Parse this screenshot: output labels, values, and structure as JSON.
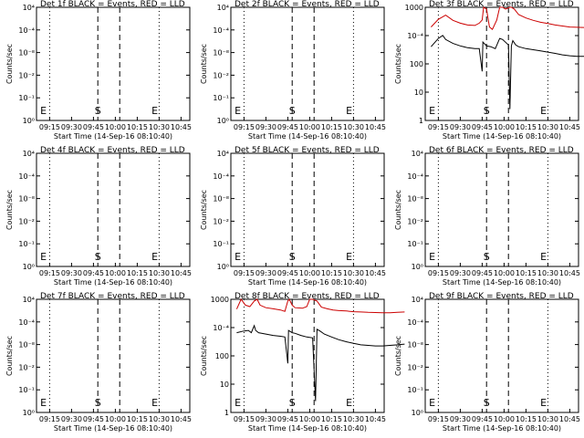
{
  "chart_data": [
    {
      "type": "line",
      "title": "Det 1f BLACK = Events, RED = LLD",
      "ylabel": "Counts/sec",
      "xlabel": "Start Time (14-Sep-16 08:10:40)",
      "yscale": "log",
      "ylim": [
        1,
        100000
      ],
      "ytick_labels": [
        "10⁴",
        "10⁻⁴",
        "10⁻⁸",
        "10⁻²",
        "10⁻¹",
        "10⁰"
      ],
      "xtick_labels": [
        "09:15",
        "09:30",
        "09:45",
        "10:00",
        "10:15",
        "10:30",
        "10:45"
      ],
      "markers": [
        {
          "label": "E",
          "time": "09:12"
        },
        {
          "label": "S",
          "time": "09:48"
        },
        {
          "label": "E",
          "time": "10:27"
        }
      ],
      "series": []
    },
    {
      "type": "line",
      "title": "Det 2f BLACK = Events, RED = LLD",
      "ylabel": "Counts/sec",
      "xlabel": "Start Time (14-Sep-16 08:10:40)",
      "yscale": "log",
      "ylim": [
        1,
        100000
      ],
      "ytick_labels": [
        "10⁴",
        "10⁻⁴",
        "10⁻⁸",
        "10⁻²",
        "10⁻¹",
        "10⁰"
      ],
      "xtick_labels": [
        "09:15",
        "09:30",
        "09:45",
        "10:00",
        "10:15",
        "10:30",
        "10:45"
      ],
      "markers": [
        {
          "label": "E",
          "time": "09:12"
        },
        {
          "label": "S",
          "time": "09:48"
        },
        {
          "label": "E",
          "time": "10:27"
        }
      ],
      "series": []
    },
    {
      "type": "line",
      "title": "Det 3f BLACK = Events, RED = LLD",
      "ylabel": "Counts/sec",
      "xlabel": "Start Time (14-Sep-16 08:10:40)",
      "yscale": "log",
      "ylim": [
        1,
        1000
      ],
      "ytick_labels": [
        "1000",
        "10⁻⁴",
        "100",
        "10",
        "1"
      ],
      "xtick_labels": [
        "09:15",
        "09:30",
        "09:45",
        "10:00",
        "10:15",
        "10:30",
        "10:45"
      ],
      "markers": [
        {
          "label": "E",
          "time": "09:12"
        },
        {
          "label": "S",
          "time": "09:48"
        },
        {
          "label": "E",
          "time": "10:27"
        }
      ],
      "series": [
        {
          "color": "#cc0000",
          "points": [
            [
              0,
              300
            ],
            [
              5,
              480
            ],
            [
              10,
              620
            ],
            [
              15,
              450
            ],
            [
              20,
              380
            ],
            [
              25,
              340
            ],
            [
              30,
              330
            ],
            [
              33,
              380
            ],
            [
              35,
              460
            ],
            [
              36,
              1000
            ],
            [
              38,
              900
            ],
            [
              40,
              300
            ],
            [
              42,
              260
            ],
            [
              45,
              460
            ],
            [
              47,
              1000
            ],
            [
              49,
              1000
            ],
            [
              51,
              900
            ],
            [
              54,
              1000
            ],
            [
              55,
              1000
            ],
            [
              57,
              900
            ],
            [
              60,
              640
            ],
            [
              65,
              520
            ],
            [
              70,
              450
            ],
            [
              75,
              400
            ],
            [
              80,
              370
            ],
            [
              85,
              340
            ],
            [
              90,
              320
            ],
            [
              95,
              300
            ],
            [
              100,
              295
            ],
            [
              105,
              290
            ],
            [
              110,
              300
            ],
            [
              115,
              310
            ]
          ]
        },
        {
          "color": "#000000",
          "points": [
            [
              0,
              90
            ],
            [
              5,
              150
            ],
            [
              8,
              180
            ],
            [
              10,
              140
            ],
            [
              15,
              110
            ],
            [
              20,
              95
            ],
            [
              25,
              85
            ],
            [
              30,
              80
            ],
            [
              33,
              80
            ],
            [
              35,
              20
            ],
            [
              35.5,
              120
            ],
            [
              38,
              95
            ],
            [
              41,
              90
            ],
            [
              44,
              80
            ],
            [
              47,
              150
            ],
            [
              49,
              140
            ],
            [
              53,
              100
            ],
            [
              54,
              2
            ],
            [
              55,
              95
            ],
            [
              56,
              130
            ],
            [
              58,
              100
            ],
            [
              60,
              90
            ],
            [
              65,
              80
            ],
            [
              70,
              75
            ],
            [
              75,
              70
            ],
            [
              80,
              65
            ],
            [
              85,
              60
            ],
            [
              90,
              55
            ],
            [
              95,
              52
            ],
            [
              100,
              50
            ],
            [
              105,
              50
            ],
            [
              110,
              55
            ],
            [
              115,
              60
            ]
          ]
        }
      ]
    },
    {
      "type": "line",
      "title": "Det 4f BLACK = Events, RED = LLD",
      "ylabel": "Counts/sec",
      "xlabel": "Start Time (14-Sep-16 08:10:40)",
      "yscale": "log",
      "ylim": [
        1,
        100000
      ],
      "ytick_labels": [
        "10⁴",
        "10⁻⁴",
        "10⁻⁸",
        "10⁻²",
        "10⁻¹",
        "10⁰"
      ],
      "xtick_labels": [
        "09:15",
        "09:30",
        "09:45",
        "10:00",
        "10:15",
        "10:30",
        "10:45"
      ],
      "markers": [
        {
          "label": "E",
          "time": "09:12"
        },
        {
          "label": "S",
          "time": "09:48"
        },
        {
          "label": "E",
          "time": "10:27"
        }
      ],
      "series": []
    },
    {
      "type": "line",
      "title": "Det 5f BLACK = Events, RED = LLD",
      "ylabel": "Counts/sec",
      "xlabel": "Start Time (14-Sep-16 08:10:40)",
      "yscale": "log",
      "ylim": [
        1,
        100000
      ],
      "ytick_labels": [
        "10⁴",
        "10⁻⁴",
        "10⁻⁸",
        "10⁻²",
        "10⁻¹",
        "10⁰"
      ],
      "xtick_labels": [
        "09:15",
        "09:30",
        "09:45",
        "10:00",
        "10:15",
        "10:30",
        "10:45"
      ],
      "markers": [
        {
          "label": "E",
          "time": "09:12"
        },
        {
          "label": "S",
          "time": "09:48"
        },
        {
          "label": "E",
          "time": "10:27"
        }
      ],
      "series": []
    },
    {
      "type": "line",
      "title": "Det 6f BLACK = Events, RED = LLD",
      "ylabel": "Counts/sec",
      "xlabel": "Start Time (14-Sep-16 08:10:40)",
      "yscale": "log",
      "ylim": [
        1,
        100000
      ],
      "ytick_labels": [
        "10⁴",
        "10⁻⁴",
        "10⁻⁸",
        "10⁻²",
        "10⁻¹",
        "10⁰"
      ],
      "xtick_labels": [
        "09:15",
        "09:30",
        "09:45",
        "10:00",
        "10:15",
        "10:30",
        "10:45"
      ],
      "markers": [
        {
          "label": "E",
          "time": "09:12"
        },
        {
          "label": "S",
          "time": "09:48"
        },
        {
          "label": "E",
          "time": "10:27"
        }
      ],
      "series": []
    },
    {
      "type": "line",
      "title": "Det 7f BLACK = Events, RED = LLD",
      "ylabel": "Counts/sec",
      "xlabel": "Start Time (14-Sep-16 08:10:40)",
      "yscale": "log",
      "ylim": [
        1,
        100000
      ],
      "ytick_labels": [
        "10⁴",
        "10⁻⁴",
        "10⁻⁸",
        "10⁻²",
        "10⁻¹",
        "10⁰"
      ],
      "xtick_labels": [
        "09:15",
        "09:30",
        "09:45",
        "10:00",
        "10:15",
        "10:30",
        "10:45"
      ],
      "markers": [
        {
          "label": "E",
          "time": "09:12"
        },
        {
          "label": "S",
          "time": "09:48"
        },
        {
          "label": "E",
          "time": "10:27"
        }
      ],
      "series": []
    },
    {
      "type": "line",
      "title": "Det 8f BLACK = Events, RED = LLD",
      "ylabel": "Counts/sec",
      "xlabel": "Start Time (14-Sep-16 08:10:40)",
      "yscale": "log",
      "ylim": [
        1,
        1000
      ],
      "ytick_labels": [
        "1000",
        "10⁻⁴",
        "100",
        "10",
        "1"
      ],
      "xtick_labels": [
        "09:15",
        "09:30",
        "09:45",
        "10:00",
        "10:15",
        "10:30",
        "10:45"
      ],
      "markers": [
        {
          "label": "E",
          "time": "09:12"
        },
        {
          "label": "S",
          "time": "09:48"
        },
        {
          "label": "E",
          "time": "10:27"
        }
      ],
      "series": [
        {
          "color": "#cc0000",
          "points": [
            [
              0,
              550
            ],
            [
              3,
              1000
            ],
            [
              6,
              700
            ],
            [
              9,
              640
            ],
            [
              12,
              900
            ],
            [
              14,
              1000
            ],
            [
              16,
              700
            ],
            [
              20,
              600
            ],
            [
              25,
              560
            ],
            [
              30,
              520
            ],
            [
              33,
              480
            ],
            [
              35,
              900
            ],
            [
              36,
              1000
            ],
            [
              38,
              700
            ],
            [
              40,
              600
            ],
            [
              45,
              580
            ],
            [
              48,
              640
            ],
            [
              50,
              1000
            ],
            [
              52,
              1000
            ],
            [
              55,
              900
            ],
            [
              58,
              620
            ],
            [
              62,
              560
            ],
            [
              66,
              520
            ],
            [
              70,
              500
            ],
            [
              75,
              490
            ],
            [
              80,
              470
            ],
            [
              85,
              460
            ],
            [
              90,
              450
            ],
            [
              95,
              445
            ],
            [
              100,
              440
            ],
            [
              105,
              440
            ],
            [
              110,
              450
            ],
            [
              115,
              460
            ]
          ]
        },
        {
          "color": "#000000",
          "points": [
            [
              0,
              130
            ],
            [
              5,
              145
            ],
            [
              8,
              150
            ],
            [
              10,
              130
            ],
            [
              12,
              200
            ],
            [
              13,
              150
            ],
            [
              15,
              130
            ],
            [
              20,
              120
            ],
            [
              25,
              110
            ],
            [
              30,
              105
            ],
            [
              33,
              100
            ],
            [
              35,
              20
            ],
            [
              35.5,
              150
            ],
            [
              38,
              130
            ],
            [
              40,
              125
            ],
            [
              44,
              110
            ],
            [
              48,
              100
            ],
            [
              52,
              95
            ],
            [
              54,
              2
            ],
            [
              55,
              160
            ],
            [
              57,
              145
            ],
            [
              60,
              120
            ],
            [
              65,
              100
            ],
            [
              70,
              85
            ],
            [
              75,
              75
            ],
            [
              80,
              68
            ],
            [
              85,
              62
            ],
            [
              90,
              60
            ],
            [
              95,
              58
            ],
            [
              100,
              58
            ],
            [
              105,
              60
            ],
            [
              110,
              62
            ],
            [
              115,
              65
            ]
          ]
        }
      ]
    },
    {
      "type": "line",
      "title": "Det 9f BLACK = Events, RED = LLD",
      "ylabel": "Counts/sec",
      "xlabel": "Start Time (14-Sep-16 08:10:40)",
      "yscale": "log",
      "ylim": [
        1,
        100000
      ],
      "ytick_labels": [
        "10⁴",
        "10⁻⁴",
        "10⁻⁸",
        "10⁻²",
        "10⁻¹",
        "10⁰"
      ],
      "xtick_labels": [
        "09:15",
        "09:30",
        "09:45",
        "10:00",
        "10:15",
        "10:30",
        "10:45"
      ],
      "markers": [
        {
          "label": "E",
          "time": "09:12"
        },
        {
          "label": "S",
          "time": "09:48"
        },
        {
          "label": "E",
          "time": "10:27"
        }
      ],
      "series": []
    }
  ]
}
